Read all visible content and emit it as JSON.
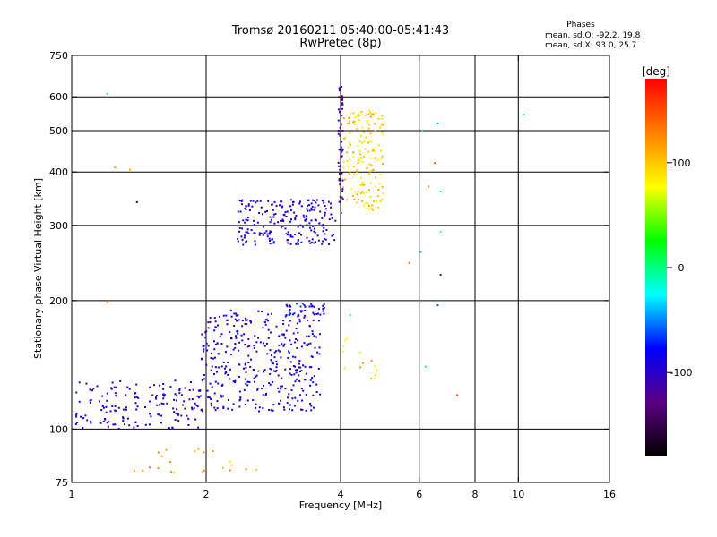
{
  "chart_data": {
    "type": "scatter",
    "title": "Tromsø 20160211 05:40:00-05:41:43",
    "subtitle": "RwPretec (8p)",
    "xlabel": "Frequency [MHz]",
    "ylabel": "Stationary phase Virtual Height [km]",
    "xscale": "log",
    "yscale": "log",
    "xlim": [
      1,
      16
    ],
    "ylim": [
      75,
      750
    ],
    "xticks": [
      1,
      2,
      4,
      6,
      8,
      10,
      16
    ],
    "yticks": [
      75,
      100,
      200,
      300,
      400,
      500,
      600,
      750
    ],
    "x_gridlines": [
      2,
      4,
      6,
      8,
      10
    ],
    "y_gridlines": [
      100,
      200,
      300,
      400,
      500,
      600
    ],
    "phase_stats": {
      "title": "Phases",
      "line_o": "mean, sd,O: -92.2, 19.8",
      "line_x": "mean, sd,X:  93.0, 25.7"
    },
    "colorbar": {
      "label": "[deg]",
      "range": [
        -180,
        180
      ],
      "ticks": [
        100,
        0,
        -100
      ],
      "colors": [
        "#000000",
        "#5a0082",
        "#0000ff",
        "#00ffff",
        "#00ff00",
        "#ffff00",
        "#ff8000",
        "#ff0000"
      ]
    },
    "point_groups": [
      {
        "x_range": [
          1.02,
          1.95
        ],
        "y_range": [
          100,
          130
        ],
        "phase": -100,
        "count": 160
      },
      {
        "x_range": [
          1.95,
          3.6
        ],
        "y_range": [
          110,
          190
        ],
        "phase": -95,
        "count": 380
      },
      {
        "x_range": [
          3.0,
          3.7
        ],
        "y_range": [
          185,
          197
        ],
        "phase": -80,
        "count": 35
      },
      {
        "x_range": [
          2.35,
          3.9
        ],
        "y_range": [
          270,
          345
        ],
        "phase": -95,
        "count": 220
      },
      {
        "x_range": [
          3.95,
          4.05
        ],
        "y_range": [
          320,
          640
        ],
        "phase": -110,
        "count": 55
      },
      {
        "x_range": [
          4.05,
          5.0
        ],
        "y_range": [
          325,
          560
        ],
        "phase": 95,
        "count": 160
      },
      {
        "x_range": [
          4.05,
          4.9
        ],
        "y_range": [
          130,
          165
        ],
        "phase": 100,
        "count": 14
      },
      {
        "x_range": [
          1.35,
          2.6
        ],
        "y_range": [
          78,
          90
        ],
        "phase": 110,
        "count": 22
      }
    ],
    "scattered_points": [
      {
        "x": 1.2,
        "y": 610,
        "phase": -10
      },
      {
        "x": 1.25,
        "y": 410,
        "phase": 120
      },
      {
        "x": 1.35,
        "y": 405,
        "phase": 115
      },
      {
        "x": 1.4,
        "y": 340,
        "phase": -150
      },
      {
        "x": 1.2,
        "y": 198,
        "phase": 115
      },
      {
        "x": 6.2,
        "y": 140,
        "phase": -30
      },
      {
        "x": 6.6,
        "y": 520,
        "phase": -40
      },
      {
        "x": 6.7,
        "y": 360,
        "phase": -30
      },
      {
        "x": 6.7,
        "y": 290,
        "phase": -20
      },
      {
        "x": 6.7,
        "y": 230,
        "phase": -120
      },
      {
        "x": 6.6,
        "y": 195,
        "phase": -60
      },
      {
        "x": 6.5,
        "y": 420,
        "phase": 140
      },
      {
        "x": 6.1,
        "y": 500,
        "phase": -10
      },
      {
        "x": 5.7,
        "y": 245,
        "phase": 130
      },
      {
        "x": 6.05,
        "y": 260,
        "phase": -40
      },
      {
        "x": 7.3,
        "y": 120,
        "phase": 160
      },
      {
        "x": 10.3,
        "y": 545,
        "phase": -30
      },
      {
        "x": 6.3,
        "y": 370,
        "phase": 120
      },
      {
        "x": 4.2,
        "y": 185,
        "phase": -20
      }
    ]
  }
}
